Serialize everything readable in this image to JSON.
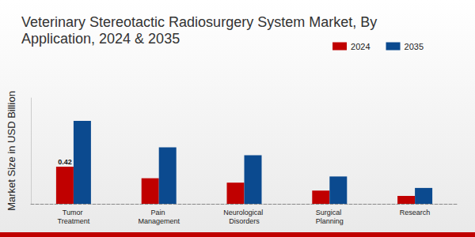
{
  "chart_data": {
    "type": "bar",
    "title": "Veterinary Stereotactic Radiosurgery System Market, By Application, 2024 & 2035",
    "y_label": "Market Size in USD Billion",
    "categories": [
      "Tumor Treatment",
      "Pain Management",
      "Neurological Disorders",
      "Surgical Planning",
      "Research"
    ],
    "series": [
      {
        "name": "2024",
        "color": "#c00000",
        "values": [
          0.42,
          0.29,
          0.24,
          0.15,
          0.09
        ],
        "value_labels": [
          "0.42",
          null,
          null,
          null,
          null
        ]
      },
      {
        "name": "2035",
        "color": "#0b4a8f",
        "values": [
          0.94,
          0.64,
          0.55,
          0.31,
          0.18
        ]
      }
    ],
    "ylim": [
      0,
      1.2
    ],
    "data_labels": true,
    "tick_labels": "x",
    "grid": false,
    "legend": "top-right"
  }
}
